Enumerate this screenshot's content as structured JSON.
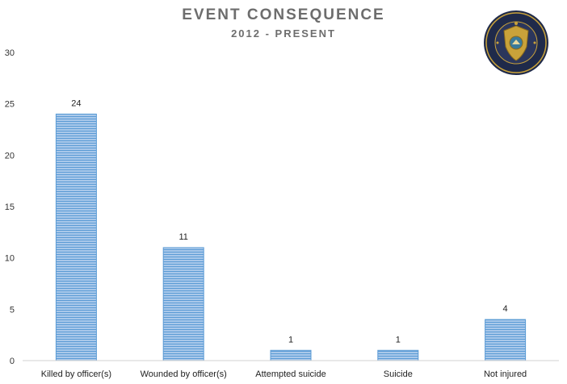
{
  "colors": {
    "bar_fill": "#a9c8ea",
    "bar_stripe": "#5b9bd5",
    "axis": "#d0d0d0",
    "title": "#6d6d6d",
    "badge_ring": "#1f2a4a",
    "badge_gold": "#c9a23a"
  },
  "logo": {
    "name": "police-badge-seal",
    "ring_text_top": "SERVICE · MONTANA DEPARTMENT OF JUSTICE · HONOR",
    "ring_text_bottom": "JUSTICE"
  },
  "chart_data": {
    "type": "bar",
    "title": "EVENT CONSEQUENCE",
    "subtitle": "2012 - PRESENT",
    "xlabel": "",
    "ylabel": "",
    "categories": [
      "Killed by officer(s)",
      "Wounded by officer(s)",
      "Attempted suicide",
      "Suicide",
      "Not injured"
    ],
    "values": [
      24,
      11,
      1,
      1,
      4
    ],
    "data_labels": [
      "24",
      "11",
      "1",
      "1",
      "4"
    ],
    "ylim": [
      0,
      30
    ],
    "yticks": [
      0,
      5,
      10,
      15,
      20,
      25,
      30
    ],
    "grid": false,
    "legend": "none"
  }
}
